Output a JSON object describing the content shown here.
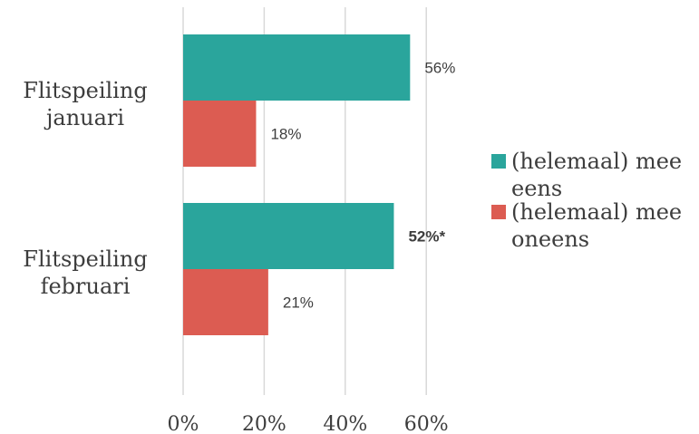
{
  "chart_data": {
    "type": "bar",
    "orientation": "horizontal",
    "categories": [
      [
        "Flitspeiling",
        "januari"
      ],
      [
        "Flitspeiling",
        "februari"
      ]
    ],
    "series": [
      {
        "name": [
          "(helemaal) mee",
          "eens"
        ],
        "color": "#2aa59c",
        "values": [
          56,
          52
        ],
        "labels": [
          "56%",
          "52%*"
        ],
        "label_bold": [
          false,
          true
        ]
      },
      {
        "name": [
          "(helemaal) mee",
          "oneens"
        ],
        "color": "#dc5c52",
        "values": [
          18,
          21
        ],
        "labels": [
          "18%",
          "21%"
        ],
        "label_bold": [
          false,
          false
        ]
      }
    ],
    "x_ticks": [
      0,
      20,
      40,
      60
    ],
    "x_tick_labels": [
      "0%",
      "20%",
      "40%",
      "60%"
    ],
    "xlim": [
      0,
      60
    ],
    "grid": true,
    "legend": "right",
    "title": "",
    "xlabel": "",
    "ylabel": ""
  }
}
